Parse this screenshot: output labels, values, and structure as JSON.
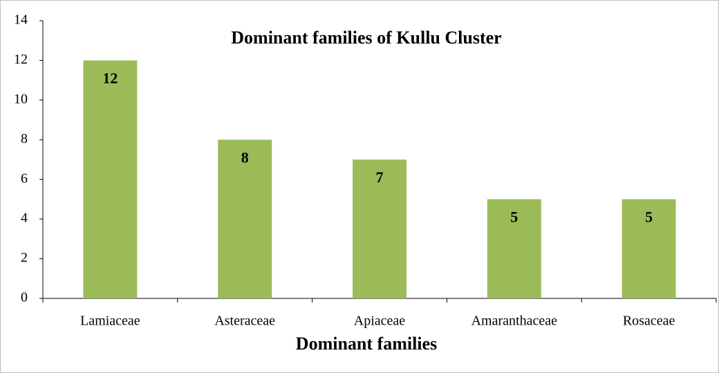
{
  "chart_data": {
    "type": "bar",
    "title": "Dominant families of Kullu Cluster",
    "x_label": "Dominant families",
    "categories": [
      "Lamiaceae",
      "Asteraceae",
      "Apiaceae",
      "Amaranthaceae",
      "Rosaceae"
    ],
    "values": [
      12,
      8,
      7,
      5,
      5
    ],
    "color": "#9bbb59",
    "ylim": [
      0,
      14
    ],
    "yticks": [
      0,
      2,
      4,
      6,
      8,
      10,
      12,
      14
    ],
    "grid": false
  }
}
